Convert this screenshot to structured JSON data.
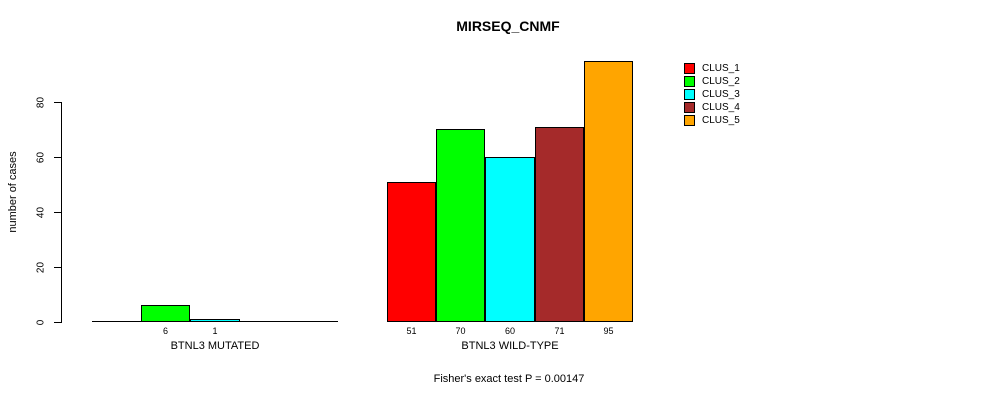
{
  "title": "MIRSEQ_CNMF",
  "footer": "Fisher's exact test P = 0.00147",
  "chart_data": {
    "type": "bar",
    "title": "MIRSEQ_CNMF",
    "xlabel": "",
    "ylabel": "number of cases",
    "ylim": [
      0,
      95
    ],
    "yticks": [
      0,
      20,
      40,
      60,
      80
    ],
    "grid": false,
    "legend_position": "right",
    "categories": [
      "BTNL3 MUTATED",
      "BTNL3 WILD-TYPE"
    ],
    "series": [
      {
        "name": "CLUS_1",
        "color": "#FF0000",
        "values": [
          0,
          51
        ]
      },
      {
        "name": "CLUS_2",
        "color": "#00FF00",
        "values": [
          6,
          70
        ]
      },
      {
        "name": "CLUS_3",
        "color": "#00FFFF",
        "values": [
          1,
          60
        ]
      },
      {
        "name": "CLUS_4",
        "color": "#A52A2A",
        "values": [
          0,
          71
        ]
      },
      {
        "name": "CLUS_5",
        "color": "#FFA500",
        "values": [
          0,
          95
        ]
      }
    ],
    "bar_value_labels_shown": [
      [
        null,
        "6",
        "1",
        null,
        null
      ],
      [
        "51",
        "70",
        "60",
        "71",
        "95"
      ]
    ],
    "annotation": "Fisher's exact test P = 0.00147"
  }
}
